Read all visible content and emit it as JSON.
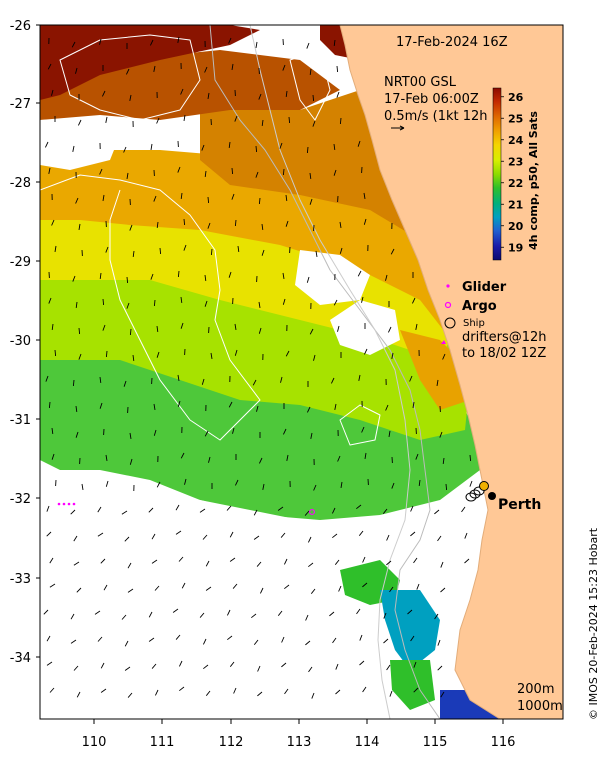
{
  "header": {
    "datetime": "17-Feb-2024 16Z"
  },
  "wind_info": {
    "line1": "NRT00 GSL",
    "line2": "17-Feb 06:00Z",
    "line3": "0.5m/s (1kt 12h"
  },
  "colorbar": {
    "title": "4h comp, p50, All Sats",
    "ticks": [
      "26",
      "25",
      "24",
      "23",
      "22",
      "21",
      "20",
      "19"
    ],
    "colors": [
      "#8b0a00",
      "#c42a00",
      "#e06a00",
      "#f0a000",
      "#f5d400",
      "#d7ef00",
      "#8fdc00",
      "#2fbf2a",
      "#00b07a",
      "#00a0c0",
      "#2060d0",
      "#1a1aa8",
      "#0a0a70"
    ]
  },
  "legend": {
    "glider": "Glider",
    "argo": "Argo",
    "ship": "Ship",
    "drifters_line1": "drifters@12h",
    "drifters_line2": "to 18/02 12Z",
    "colors": {
      "glider": "#ff00ff",
      "argo": "#ff00ff",
      "ship": "#000000",
      "drifters": "#ff00ff"
    }
  },
  "axes": {
    "lat_ticks": [
      "-26",
      "-27",
      "-28",
      "-29",
      "-30",
      "-31",
      "-32",
      "-33",
      "-34"
    ],
    "lon_ticks": [
      "110",
      "111",
      "112",
      "113",
      "114",
      "115",
      "116"
    ]
  },
  "place": {
    "perth": "Perth"
  },
  "contours": {
    "c200": "200m",
    "c1000": "1000m"
  },
  "credit": "© IMOS 20-Feb-2024 15:23 Hobart",
  "colors": {
    "land": "#ffc896",
    "no_data": "#ffffff",
    "land_outline": "#e8b888"
  }
}
